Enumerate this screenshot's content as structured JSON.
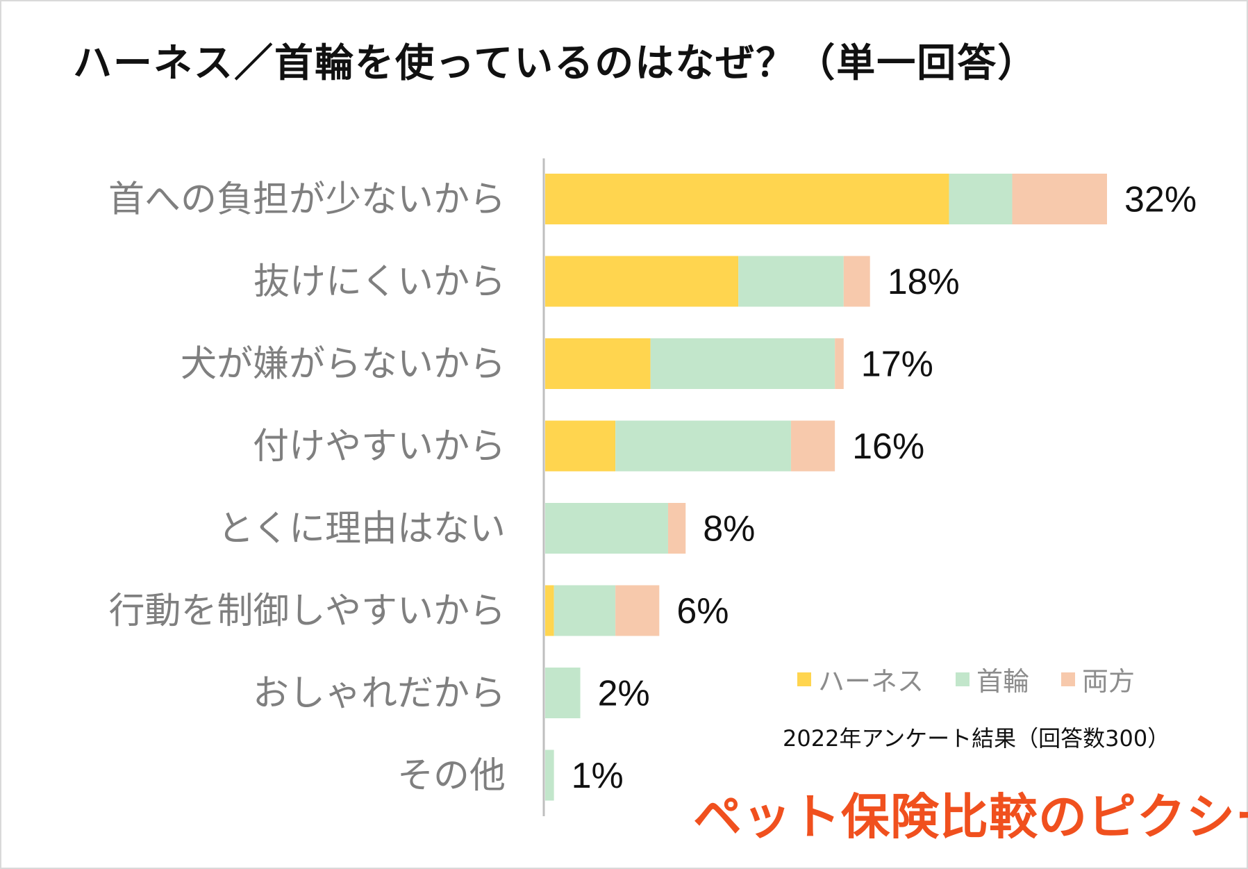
{
  "chart_data": {
    "type": "bar",
    "orientation": "horizontal",
    "stacked": true,
    "title": "ハーネス／首輪を使っているのはなぜ？（単一回答）",
    "categories": [
      "首への負担が少ないから",
      "抜けにくいから",
      "犬が嫌がらないから",
      "付けやすいから",
      "とくに理由はない",
      "行動を制御しやすいから",
      "おしゃれだから",
      "その他"
    ],
    "series": [
      {
        "name": "ハーネス",
        "color": "#FFD54F",
        "values": [
          23,
          11,
          6,
          4,
          0,
          0.5,
          0,
          0
        ]
      },
      {
        "name": "首輪",
        "color": "#C2E6CB",
        "values": [
          3.6,
          6,
          10.5,
          10,
          7,
          3.5,
          2,
          0.5
        ]
      },
      {
        "name": "両方",
        "color": "#F7C9AC",
        "values": [
          5.4,
          1.5,
          0.5,
          2.5,
          1,
          2.5,
          0,
          0
        ]
      }
    ],
    "totals": [
      "32%",
      "18%",
      "17%",
      "16%",
      "8%",
      "6%",
      "2%",
      "1%"
    ],
    "xlim": [
      0,
      32
    ],
    "legend": "bottom-right",
    "grid": false
  },
  "note": "2022年アンケート結果（回答数300）",
  "brand": "ペット保険比較のピクシー"
}
